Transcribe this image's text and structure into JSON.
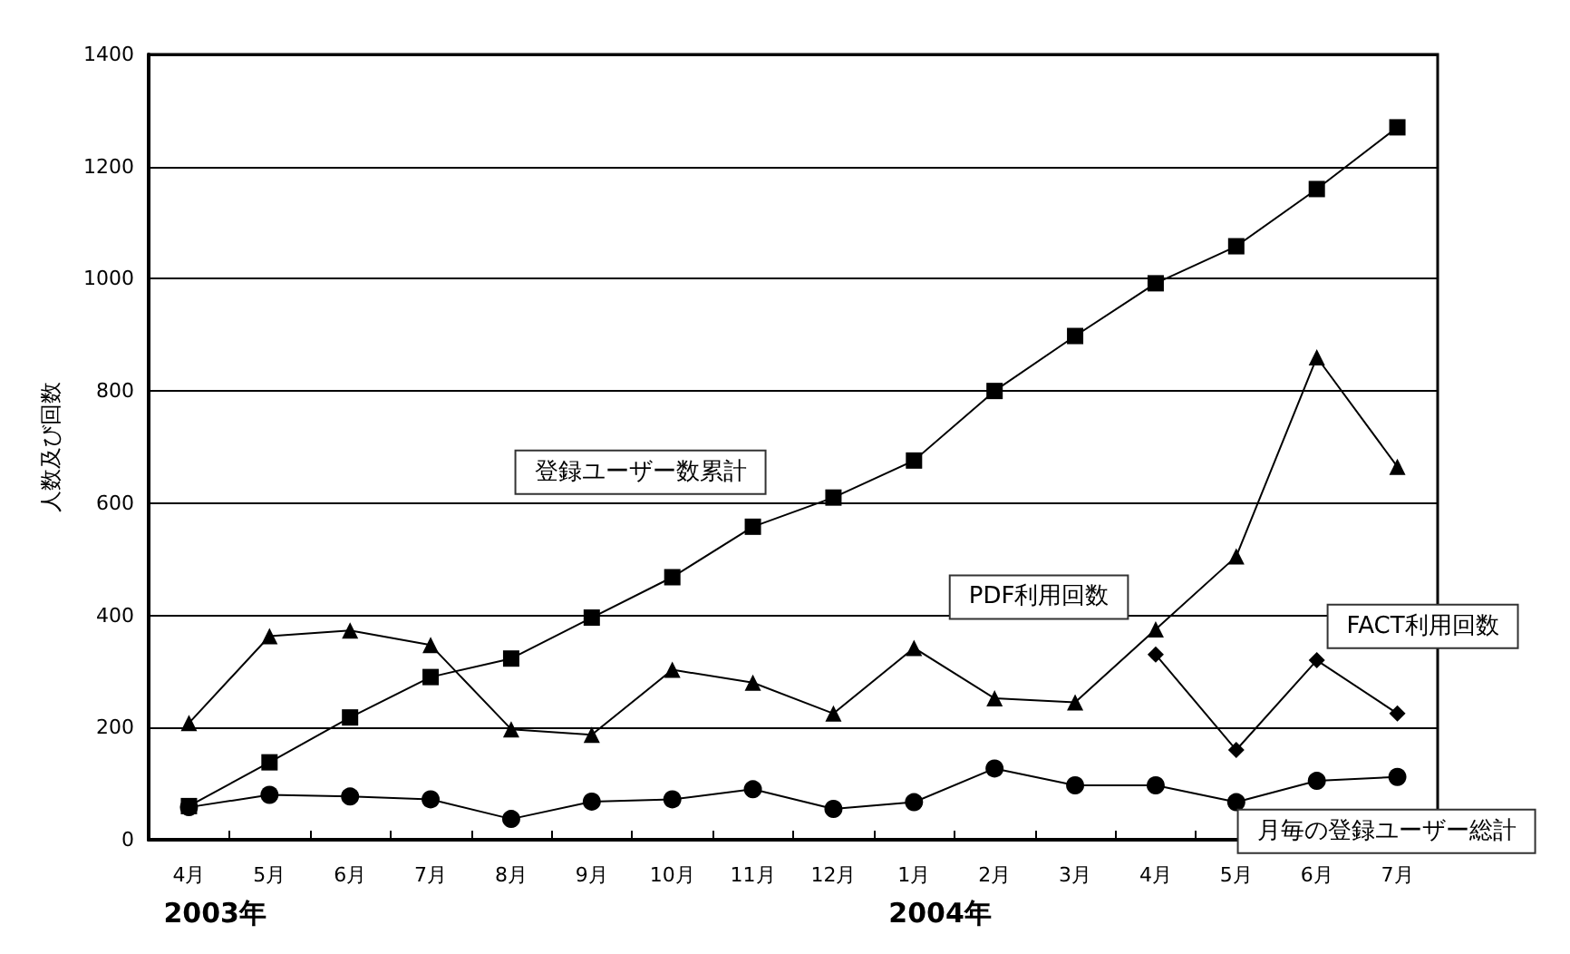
{
  "chart_data": {
    "type": "line",
    "ylabel": "人数及び回数",
    "categories": [
      "4月",
      "5月",
      "6月",
      "7月",
      "8月",
      "9月",
      "10月",
      "11月",
      "12月",
      "1月",
      "2月",
      "3月",
      "4月",
      "5月",
      "6月",
      "7月"
    ],
    "ylim": [
      0,
      1400
    ],
    "yticks": [
      0,
      200,
      400,
      600,
      800,
      1000,
      1200,
      1400
    ],
    "grid": "y",
    "legend": false,
    "series": [
      {
        "name": "登録ユーザー数累計",
        "color": "#000000",
        "marker": "square",
        "values": [
          60,
          138,
          218,
          290,
          323,
          396,
          468,
          558,
          610,
          676,
          800,
          898,
          992,
          1058,
          1160,
          1270
        ]
      },
      {
        "name": "PDF利用回数",
        "color": "#000000",
        "marker": "triangle",
        "values": [
          208,
          363,
          373,
          347,
          197,
          187,
          303,
          280,
          225,
          342,
          252,
          245,
          375,
          505,
          860,
          665
        ]
      },
      {
        "name": "FACT利用回数",
        "color": "#000000",
        "marker": "diamond",
        "values": [
          null,
          null,
          null,
          null,
          null,
          null,
          null,
          null,
          null,
          null,
          null,
          null,
          330,
          160,
          320,
          225
        ]
      },
      {
        "name": "月毎の登録ユーザー総計",
        "color": "#000000",
        "marker": "circle",
        "values": [
          58,
          80,
          77,
          72,
          37,
          68,
          72,
          90,
          55,
          67,
          127,
          97,
          97,
          67,
          105,
          112
        ]
      }
    ],
    "annotations": [
      "2003年",
      "2004年"
    ]
  }
}
